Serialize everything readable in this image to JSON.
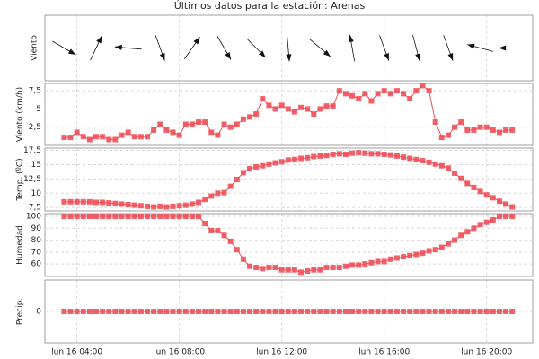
{
  "title": "Últimos datos para la estación: Arenas",
  "xlim": [
    2.75,
    21.8
  ],
  "xticks": [
    {
      "value": 4,
      "label": "lun 16 04:00"
    },
    {
      "value": 8,
      "label": "lun 16 08:00"
    },
    {
      "value": 12,
      "label": "lun 16 12:00"
    },
    {
      "value": 16,
      "label": "lun 16 16:00"
    },
    {
      "value": 20,
      "label": "lun 16 20:00"
    }
  ],
  "x": [
    3.5,
    3.75,
    4,
    4.25,
    4.5,
    4.75,
    5,
    5.25,
    5.5,
    5.75,
    6,
    6.25,
    6.5,
    6.75,
    7,
    7.25,
    7.5,
    7.75,
    8,
    8.25,
    8.5,
    8.75,
    9,
    9.25,
    9.5,
    9.75,
    10,
    10.25,
    10.5,
    10.75,
    11,
    11.25,
    11.5,
    11.75,
    12,
    12.25,
    12.5,
    12.75,
    13,
    13.25,
    13.5,
    13.75,
    14,
    14.25,
    14.5,
    14.75,
    15,
    15.25,
    15.5,
    15.75,
    16,
    16.25,
    16.5,
    16.75,
    17,
    17.25,
    17.5,
    17.75,
    18,
    18.25,
    18.5,
    18.75,
    19,
    19.25,
    19.5,
    19.75,
    20,
    20.25,
    20.5,
    20.75,
    21
  ],
  "chart_data": [
    {
      "type": "arrows",
      "ylabel": "Viento",
      "x": [
        3.5,
        4.75,
        6,
        7.25,
        8.5,
        9.75,
        11,
        12.25,
        13.5,
        14.75,
        16,
        17.25,
        18.5,
        19.75,
        21
      ],
      "values": [
        120,
        25,
        275,
        160,
        35,
        150,
        135,
        175,
        130,
        350,
        160,
        165,
        160,
        285,
        270
      ]
    },
    {
      "type": "line",
      "ylabel": "Viento (km/h)",
      "color": "#f0505a",
      "ylim": [
        0,
        8.5
      ],
      "yticks": [
        {
          "value": 2.5,
          "label": "2,5"
        },
        {
          "value": 5,
          "label": "5"
        },
        {
          "value": 7.5,
          "label": "7,5"
        }
      ],
      "values": [
        1.1,
        1.1,
        1.8,
        1.2,
        0.8,
        1.2,
        1.2,
        0.8,
        0.8,
        1.4,
        1.8,
        1.2,
        1.2,
        1.2,
        2.1,
        2.9,
        2.1,
        1.8,
        1.4,
        2.9,
        2.9,
        3.2,
        3.2,
        1.8,
        1.4,
        2.9,
        2.5,
        2.9,
        3.6,
        3.9,
        4.3,
        6.4,
        5.5,
        5.0,
        5.5,
        5.0,
        4.6,
        5.2,
        5.0,
        4.3,
        5.0,
        5.4,
        5.4,
        7.5,
        7.1,
        6.8,
        6.4,
        7.1,
        6.1,
        7.1,
        7.5,
        7.1,
        7.5,
        7.1,
        6.4,
        7.5,
        8.2,
        7.5,
        3.2,
        1.1,
        1.4,
        2.5,
        3.2,
        2.1,
        2.1,
        2.5,
        2.5,
        2.1,
        1.8,
        2.1,
        2.1
      ]
    },
    {
      "type": "line",
      "ylabel": "Temp. (ºC)",
      "color": "#f0505a",
      "ylim": [
        6.9,
        17.9
      ],
      "yticks": [
        {
          "value": 7.5,
          "label": "7,5"
        },
        10,
        {
          "value": 12.5,
          "label": "12,5"
        },
        15,
        {
          "value": 17.5,
          "label": "17,5"
        }
      ],
      "values": [
        8.5,
        8.5,
        8.5,
        8.5,
        8.5,
        8.4,
        8.4,
        8.3,
        8.2,
        8.1,
        8.0,
        7.9,
        7.8,
        7.7,
        7.6,
        7.7,
        7.6,
        7.7,
        7.8,
        7.9,
        8.1,
        8.4,
        8.9,
        9.5,
        10.0,
        10.1,
        11.2,
        12.4,
        13.6,
        14.3,
        14.6,
        14.8,
        15.1,
        15.3,
        15.5,
        15.8,
        15.9,
        16.1,
        16.2,
        16.4,
        16.5,
        16.6,
        16.8,
        16.9,
        16.8,
        17.0,
        17.1,
        17.0,
        16.9,
        16.9,
        16.8,
        16.7,
        16.5,
        16.3,
        16.1,
        15.9,
        15.7,
        15.4,
        15.1,
        14.8,
        14.4,
        13.5,
        12.6,
        11.7,
        11.0,
        10.3,
        9.7,
        9.2,
        8.6,
        8.1,
        7.6
      ]
    },
    {
      "type": "line",
      "ylabel": "Humedad",
      "color": "#f0505a",
      "ylim": [
        49.5,
        102.3
      ],
      "yticks": [
        60,
        70,
        80,
        90,
        100
      ],
      "values": [
        100,
        100,
        100,
        100,
        100,
        100,
        100,
        100,
        100,
        100,
        100,
        100,
        100,
        100,
        100,
        100,
        100,
        100,
        100,
        100,
        100,
        100,
        94,
        88,
        88,
        84,
        79,
        72,
        64,
        58,
        57,
        56,
        57,
        57,
        55,
        55,
        55,
        53,
        54,
        55,
        55,
        57,
        57,
        57,
        58,
        59,
        59,
        60,
        61,
        62,
        62,
        64,
        65,
        66,
        67,
        68,
        69,
        71,
        72,
        74,
        77,
        80,
        84,
        87,
        90,
        93,
        95,
        97,
        100,
        100,
        100
      ]
    },
    {
      "type": "line",
      "ylabel": "Precip.",
      "color": "#f0505a",
      "ylim": [
        -1,
        1
      ],
      "yticks": [
        0
      ],
      "values": [
        0,
        0,
        0,
        0,
        0,
        0,
        0,
        0,
        0,
        0,
        0,
        0,
        0,
        0,
        0,
        0,
        0,
        0,
        0,
        0,
        0,
        0,
        0,
        0,
        0,
        0,
        0,
        0,
        0,
        0,
        0,
        0,
        0,
        0,
        0,
        0,
        0,
        0,
        0,
        0,
        0,
        0,
        0,
        0,
        0,
        0,
        0,
        0,
        0,
        0,
        0,
        0,
        0,
        0,
        0,
        0,
        0,
        0,
        0,
        0,
        0,
        0,
        0,
        0,
        0,
        0,
        0,
        0,
        0,
        0,
        0
      ]
    }
  ]
}
